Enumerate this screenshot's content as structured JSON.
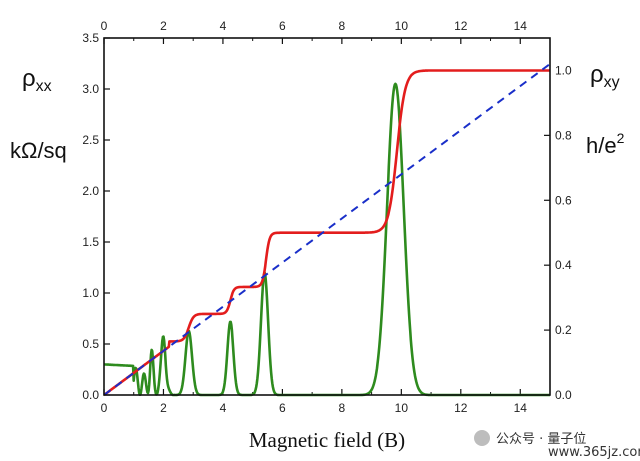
{
  "chart_data": {
    "type": "line",
    "xlabel": "Magnetic field (B)",
    "xlim": [
      0,
      15
    ],
    "x_ticks": [
      "0",
      "2",
      "4",
      "6",
      "8",
      "10",
      "12",
      "14"
    ],
    "left_axis": {
      "label_symbol": "ρ",
      "label_subscript": "xx",
      "unit": "kΩ/sq",
      "ylim": [
        0,
        3.5
      ],
      "ticks": [
        "0.0",
        "0.5",
        "1.0",
        "1.5",
        "2.0",
        "2.5",
        "3.0",
        "3.5"
      ]
    },
    "right_axis": {
      "label_symbol": "ρ",
      "label_subscript": "xy",
      "unit_base": "h/e",
      "unit_sup": "2",
      "ylim": [
        0,
        1.1
      ],
      "ticks": [
        "0.0",
        "0.2",
        "0.4",
        "0.6",
        "0.8",
        "1.0"
      ]
    },
    "series": [
      {
        "axis": "left",
        "color": "#2e8b1e",
        "baseline_start": 0.3,
        "oscillations": {
          "from": 1.0,
          "to": 2.4,
          "amplitude": 0.28,
          "period": 0.28
        },
        "peaks": [
          {
            "x": 1.6,
            "y": 0.3,
            "w": 0.05
          },
          {
            "x": 2.0,
            "y": 0.55,
            "w": 0.07
          },
          {
            "x": 2.85,
            "y": 0.63,
            "w": 0.11
          },
          {
            "x": 4.25,
            "y": 0.72,
            "w": 0.1
          },
          {
            "x": 5.4,
            "y": 1.2,
            "w": 0.12
          },
          {
            "x": 9.8,
            "y": 3.05,
            "w": 0.28
          }
        ]
      },
      {
        "axis": "right",
        "color": "#e31d1d",
        "plateaus": [
          {
            "x_end": 2.55,
            "y": 0.165
          },
          {
            "x_end": 3.9,
            "y": 0.25
          },
          {
            "x_end": 5.3,
            "y": 0.333
          },
          {
            "x_end": 9.5,
            "y": 0.5
          },
          {
            "x_end": 15,
            "y": 1.0
          }
        ],
        "transitions": [
          {
            "x": 2.85,
            "w": 0.08
          },
          {
            "x": 4.25,
            "w": 0.06
          },
          {
            "x": 5.45,
            "w": 0.06
          },
          {
            "x": 9.85,
            "w": 0.14
          }
        ]
      },
      {
        "axis": "right",
        "color": "#1a2fc9",
        "dashed": true,
        "x": [
          0,
          15
        ],
        "y": [
          0,
          1.02
        ]
      }
    ]
  },
  "watermark": "公众号 · 量子位",
  "watermark_site": "www.365jz.com"
}
